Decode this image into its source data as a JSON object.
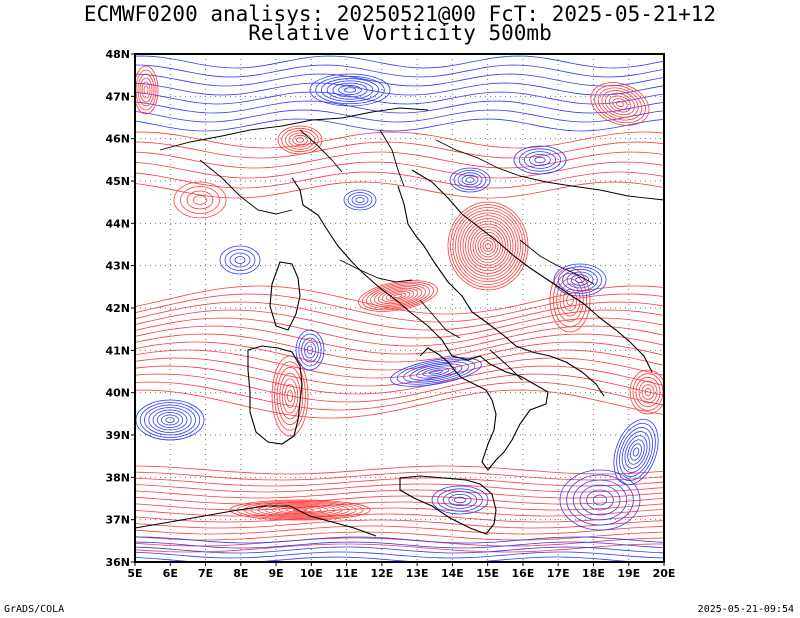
{
  "header": {
    "line1": "ECMWF0200 analisys: 20250521@00 FcT: 2025-05-21+12",
    "line2": "Relative Vorticity 500mb"
  },
  "map": {
    "lon_range": [
      5,
      20
    ],
    "lat_range": [
      36,
      48
    ],
    "lon_labels": [
      "5E",
      "6E",
      "7E",
      "8E",
      "9E",
      "10E",
      "11E",
      "12E",
      "13E",
      "14E",
      "15E",
      "16E",
      "17E",
      "18E",
      "19E",
      "20E"
    ],
    "lat_labels": [
      "36N",
      "37N",
      "38N",
      "39N",
      "40N",
      "41N",
      "42N",
      "43N",
      "44N",
      "45N",
      "46N",
      "47N",
      "48N"
    ],
    "positive_color": "#ff3b3b",
    "negative_color": "#2a3bff",
    "coast_color": "#000000",
    "grid": "dotted"
  },
  "footer": {
    "left": "GrADS/COLA",
    "right": "2025-05-21-09:54"
  }
}
